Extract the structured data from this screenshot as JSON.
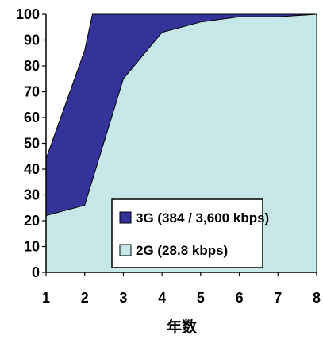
{
  "chart_data": {
    "type": "area",
    "title": "",
    "xlabel": "年数",
    "ylabel": "",
    "x": [
      1,
      2,
      3,
      4,
      5,
      6,
      7,
      8
    ],
    "xlim": [
      1,
      8
    ],
    "ylim": [
      0,
      100
    ],
    "y_ticks": [
      0,
      10,
      20,
      30,
      40,
      50,
      60,
      70,
      80,
      90,
      100
    ],
    "grid": false,
    "legend_position": "bottom-right",
    "series": [
      {
        "name": "3G (384 / 3,600 kbps)",
        "color": "#333399",
        "points": [
          [
            1,
            44
          ],
          [
            2,
            86
          ],
          [
            2.2,
            100
          ],
          [
            3,
            100
          ],
          [
            4,
            100
          ],
          [
            5,
            100
          ],
          [
            6,
            100
          ],
          [
            7,
            100
          ],
          [
            8,
            100
          ]
        ]
      },
      {
        "name": "2G (28.8 kbps)",
        "color": "#c6e8e8",
        "points": [
          [
            1,
            22
          ],
          [
            2,
            26
          ],
          [
            3,
            75
          ],
          [
            4,
            93
          ],
          [
            5,
            97
          ],
          [
            6,
            99
          ],
          [
            7,
            99
          ],
          [
            8,
            100
          ]
        ]
      }
    ]
  }
}
